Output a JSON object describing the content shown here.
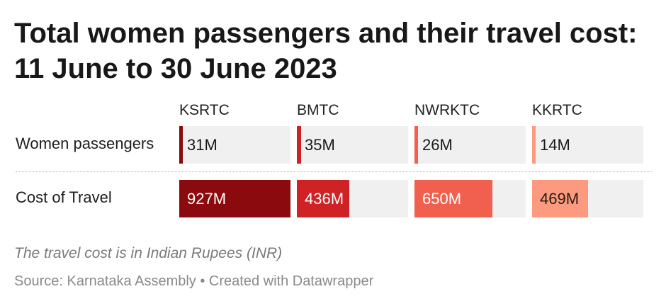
{
  "title": "Total women passengers and their travel cost: 11 June to 30 June 2023",
  "note": "The travel cost is in Indian Rupees (INR)",
  "source": "Source: Karnataka Assembly • Created with Datawrapper",
  "colors": {
    "KSRTC": "#8b0a0d",
    "BMTC": "#cf2224",
    "NWRKTC": "#f1604e",
    "KKRTC": "#fc9a80",
    "bar_background": "#f0f0f0"
  },
  "chart_data": {
    "type": "table",
    "title": "Total women passengers and their travel cost: 11 June to 30 June 2023",
    "columns": [
      "KSRTC",
      "BMTC",
      "NWRKTC",
      "KKRTC"
    ],
    "rows": [
      {
        "label": "Women passengers",
        "display": [
          "31M",
          "35M",
          "26M",
          "14M"
        ],
        "values": [
          31,
          35,
          26,
          14
        ],
        "bar_max": 927
      },
      {
        "label": "Cost of Travel",
        "display": [
          "927M",
          "436M",
          "650M",
          "469M"
        ],
        "values": [
          927,
          436,
          650,
          469
        ],
        "bar_max": 927
      }
    ]
  }
}
